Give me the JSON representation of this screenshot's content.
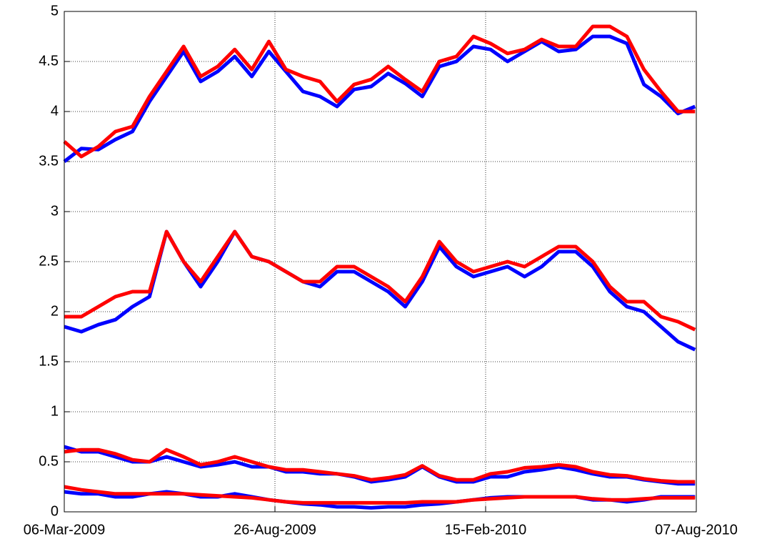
{
  "chart_data": {
    "type": "line",
    "x": [
      "2009-03-06",
      "2009-03-20",
      "2009-04-03",
      "2009-04-17",
      "2009-05-01",
      "2009-05-15",
      "2009-05-29",
      "2009-06-12",
      "2009-06-26",
      "2009-07-10",
      "2009-07-24",
      "2009-08-07",
      "2009-08-21",
      "2009-09-04",
      "2009-09-18",
      "2009-10-02",
      "2009-10-16",
      "2009-10-30",
      "2009-11-13",
      "2009-11-27",
      "2009-12-11",
      "2009-12-25",
      "2010-01-08",
      "2010-01-22",
      "2010-02-05",
      "2010-02-19",
      "2010-03-05",
      "2010-03-19",
      "2010-04-02",
      "2010-04-16",
      "2010-04-30",
      "2010-05-14",
      "2010-05-28",
      "2010-06-11",
      "2010-06-25",
      "2010-07-09",
      "2010-07-23",
      "2010-08-06"
    ],
    "series": [
      {
        "color": "#0000ff",
        "values": [
          3.5,
          3.63,
          3.62,
          3.72,
          3.8,
          4.1,
          4.35,
          4.6,
          4.3,
          4.4,
          4.55,
          4.35,
          4.6,
          4.4,
          4.2,
          4.15,
          4.05,
          4.22,
          4.25,
          4.38,
          4.28,
          4.15,
          4.45,
          4.5,
          4.65,
          4.62,
          4.5,
          4.6,
          4.7,
          4.6,
          4.62,
          4.75,
          4.75,
          4.68,
          4.27,
          4.15,
          3.98,
          4.05
        ]
      },
      {
        "color": "#ff0000",
        "values": [
          3.7,
          3.55,
          3.65,
          3.8,
          3.85,
          4.15,
          4.4,
          4.65,
          4.35,
          4.45,
          4.62,
          4.42,
          4.7,
          4.42,
          4.35,
          4.3,
          4.1,
          4.27,
          4.32,
          4.45,
          4.32,
          4.2,
          4.5,
          4.55,
          4.75,
          4.68,
          4.58,
          4.62,
          4.72,
          4.65,
          4.65,
          4.85,
          4.85,
          4.75,
          4.42,
          4.2,
          4.0,
          4.0
        ]
      },
      {
        "color": "#0000ff",
        "values": [
          1.85,
          1.8,
          1.87,
          1.92,
          2.05,
          2.15,
          2.8,
          2.5,
          2.25,
          2.5,
          2.8,
          2.55,
          2.5,
          2.4,
          2.3,
          2.25,
          2.4,
          2.4,
          2.3,
          2.2,
          2.05,
          2.3,
          2.65,
          2.45,
          2.35,
          2.4,
          2.45,
          2.35,
          2.45,
          2.6,
          2.6,
          2.45,
          2.2,
          2.05,
          2.0,
          1.85,
          1.7,
          1.62
        ]
      },
      {
        "color": "#ff0000",
        "values": [
          1.95,
          1.95,
          2.05,
          2.15,
          2.2,
          2.2,
          2.8,
          2.5,
          2.3,
          2.55,
          2.8,
          2.55,
          2.5,
          2.4,
          2.3,
          2.3,
          2.45,
          2.45,
          2.35,
          2.25,
          2.1,
          2.35,
          2.7,
          2.5,
          2.4,
          2.45,
          2.5,
          2.45,
          2.55,
          2.65,
          2.65,
          2.5,
          2.25,
          2.1,
          2.1,
          1.95,
          1.9,
          1.82
        ]
      },
      {
        "color": "#0000ff",
        "values": [
          0.65,
          0.6,
          0.6,
          0.55,
          0.5,
          0.5,
          0.55,
          0.5,
          0.45,
          0.47,
          0.5,
          0.45,
          0.45,
          0.4,
          0.4,
          0.38,
          0.38,
          0.35,
          0.3,
          0.32,
          0.35,
          0.45,
          0.35,
          0.3,
          0.3,
          0.35,
          0.35,
          0.4,
          0.42,
          0.45,
          0.42,
          0.38,
          0.35,
          0.35,
          0.32,
          0.3,
          0.28,
          0.28
        ]
      },
      {
        "color": "#ff0000",
        "values": [
          0.6,
          0.62,
          0.62,
          0.58,
          0.52,
          0.5,
          0.62,
          0.55,
          0.47,
          0.5,
          0.55,
          0.5,
          0.45,
          0.42,
          0.42,
          0.4,
          0.38,
          0.36,
          0.32,
          0.34,
          0.37,
          0.46,
          0.36,
          0.32,
          0.32,
          0.38,
          0.4,
          0.44,
          0.45,
          0.47,
          0.45,
          0.4,
          0.37,
          0.36,
          0.33,
          0.31,
          0.3,
          0.3
        ]
      },
      {
        "color": "#0000ff",
        "values": [
          0.2,
          0.18,
          0.18,
          0.15,
          0.15,
          0.18,
          0.2,
          0.18,
          0.15,
          0.15,
          0.18,
          0.15,
          0.12,
          0.1,
          0.08,
          0.07,
          0.05,
          0.05,
          0.04,
          0.05,
          0.05,
          0.07,
          0.08,
          0.1,
          0.12,
          0.14,
          0.15,
          0.15,
          0.15,
          0.15,
          0.15,
          0.12,
          0.12,
          0.1,
          0.12,
          0.15,
          0.15,
          0.15
        ]
      },
      {
        "color": "#ff0000",
        "values": [
          0.25,
          0.22,
          0.2,
          0.18,
          0.18,
          0.18,
          0.18,
          0.18,
          0.17,
          0.16,
          0.15,
          0.14,
          0.12,
          0.1,
          0.09,
          0.09,
          0.09,
          0.09,
          0.09,
          0.09,
          0.09,
          0.1,
          0.1,
          0.1,
          0.12,
          0.13,
          0.14,
          0.15,
          0.15,
          0.15,
          0.15,
          0.13,
          0.12,
          0.12,
          0.13,
          0.14,
          0.14,
          0.14
        ]
      }
    ],
    "xlim": [
      "2009-03-06",
      "2010-08-07"
    ],
    "xticks": [
      {
        "value": "2009-03-06",
        "label": "06-Mar-2009"
      },
      {
        "value": "2009-08-26",
        "label": "26-Aug-2009"
      },
      {
        "value": "2010-02-15",
        "label": "15-Feb-2010"
      },
      {
        "value": "2010-08-07",
        "label": "07-Aug-2010"
      }
    ],
    "ylim": [
      0,
      5
    ],
    "yticks": [
      0,
      0.5,
      1,
      1.5,
      2,
      2.5,
      3,
      3.5,
      4,
      4.5,
      5
    ],
    "grid": true
  }
}
